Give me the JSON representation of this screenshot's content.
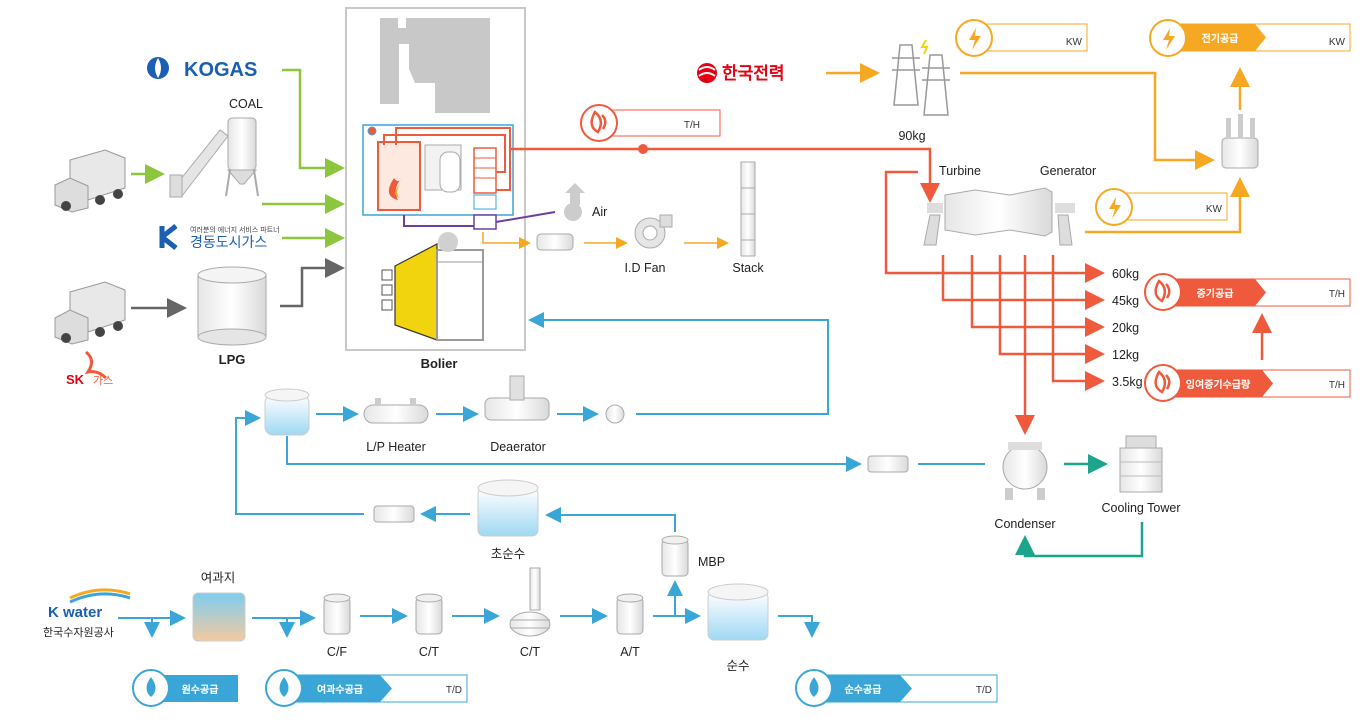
{
  "colors": {
    "green": "#8cc63f",
    "gray": "#666666",
    "red": "#f05a3c",
    "orange": "#f7a823",
    "blue": "#3aa6d8",
    "teal": "#1aa58c",
    "purple": "#6f3fa0",
    "yellow": "#f2d40e"
  },
  "sources": {
    "kogas": "KOGAS",
    "kdgas_small": "여러분의 에너지 서비스 파트너",
    "kdgas": "경동도시가스",
    "sk": "SK",
    "sk_gas": "가스",
    "kepco": "한국전력",
    "kwater": "K water",
    "kwater_sub": "한국수자원공사"
  },
  "labels": {
    "coal": "COAL",
    "lpg": "LPG",
    "boiler": "Bolier",
    "air": "Air",
    "id_fan": "I.D Fan",
    "stack": "Stack",
    "kg90": "90kg",
    "turbine": "Turbine",
    "generator": "Generator",
    "lp_heater": "L/P Heater",
    "deaerator": "Deaerator",
    "condenser": "Condenser",
    "cooling_tower": "Cooling Tower",
    "mbp": "MBP",
    "chosunsu": "초순수",
    "yeogwaji": "여과지",
    "cf": "C/F",
    "ct1": "C/T",
    "ct2": "C/T",
    "at": "A/T",
    "sunsu": "순수"
  },
  "pressures": [
    "60kg",
    "45kg",
    "20kg",
    "12kg",
    "3.5kg"
  ],
  "meters": {
    "elec_top": {
      "unit": "KW"
    },
    "elec_supply": {
      "label": "전기공급",
      "unit": "KW"
    },
    "steam_top": {
      "unit": "T/H"
    },
    "gen": {
      "unit": "KW"
    },
    "steam_supply": {
      "label": "증기공급",
      "unit": "T/H"
    },
    "surplus": {
      "label": "잉여증기수급량",
      "unit": "T/H"
    },
    "raw_water": {
      "label": "원수공급"
    },
    "filtered_water": {
      "label": "여과수공급",
      "unit": "T/D"
    },
    "pure_water": {
      "label": "순수공급",
      "unit": "T/D"
    }
  }
}
